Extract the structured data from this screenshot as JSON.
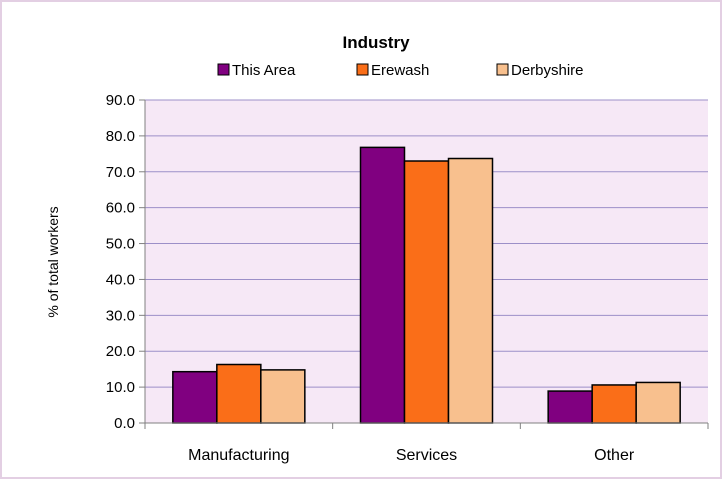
{
  "chart_data": {
    "type": "bar",
    "title": "Industry",
    "xlabel": "",
    "ylabel": "% of total workers",
    "categories": [
      "Manufacturing",
      "Services",
      "Other"
    ],
    "series": [
      {
        "name": "This Area",
        "color": "#800080",
        "values": [
          14.3,
          76.8,
          8.9
        ]
      },
      {
        "name": "Erewash",
        "color": "#fa6e18",
        "values": [
          16.3,
          73.0,
          10.6
        ]
      },
      {
        "name": "Derbyshire",
        "color": "#f8c08e",
        "values": [
          14.8,
          73.7,
          11.3
        ]
      }
    ],
    "ylim": [
      0,
      90
    ],
    "yticks": [
      "0.0",
      "10.0",
      "20.0",
      "30.0",
      "40.0",
      "50.0",
      "60.0",
      "70.0",
      "80.0",
      "90.0"
    ],
    "grid": true,
    "legend": "top",
    "plot_background": "#f6e8f6",
    "gridline_color": "#9c8fc8"
  }
}
